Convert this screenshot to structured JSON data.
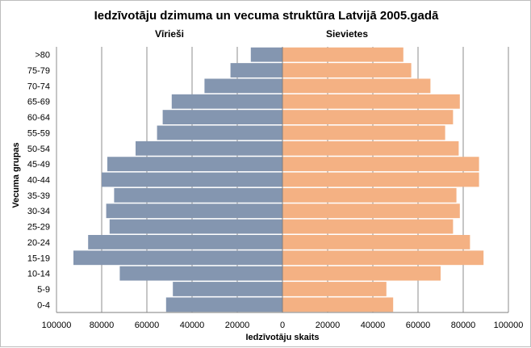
{
  "chart_data": {
    "type": "bar",
    "orientation": "horizontal-pyramid",
    "title": "Iedzīvotāju dzimuma un vecuma struktūra Latvijā 2005.gadā",
    "xlabel": "Iedzīvotāju skaits",
    "ylabel": "Vecuma grupas",
    "categories": [
      "0-4",
      "5-9",
      "10-14",
      "15-19",
      "20-24",
      "25-29",
      "30-34",
      "35-39",
      "40-44",
      "45-49",
      "50-54",
      "55-59",
      "60-64",
      "65-69",
      "70-74",
      "75-79",
      ">80"
    ],
    "series": [
      {
        "name": "Vīrieši",
        "color": "#8496b0",
        "values": [
          51500,
          48500,
          72000,
          92500,
          86000,
          76500,
          78000,
          74500,
          80000,
          77500,
          65000,
          55500,
          53000,
          49000,
          34500,
          23000,
          14000
        ]
      },
      {
        "name": "Sievietes",
        "color": "#f4b183",
        "values": [
          49000,
          46000,
          70000,
          89000,
          83000,
          75500,
          78500,
          77000,
          87000,
          87000,
          78000,
          72000,
          75500,
          78500,
          65500,
          57000,
          53500
        ]
      }
    ],
    "xlim": [
      -100000,
      100000
    ],
    "xticks": [
      -100000,
      -80000,
      -60000,
      -40000,
      -20000,
      0,
      20000,
      40000,
      60000,
      80000,
      100000
    ],
    "xtick_labels": [
      "100000",
      "80000",
      "60000",
      "40000",
      "20000",
      "0",
      "20000",
      "40000",
      "60000",
      "80000",
      "100000"
    ],
    "grid": true,
    "legend": "none"
  }
}
